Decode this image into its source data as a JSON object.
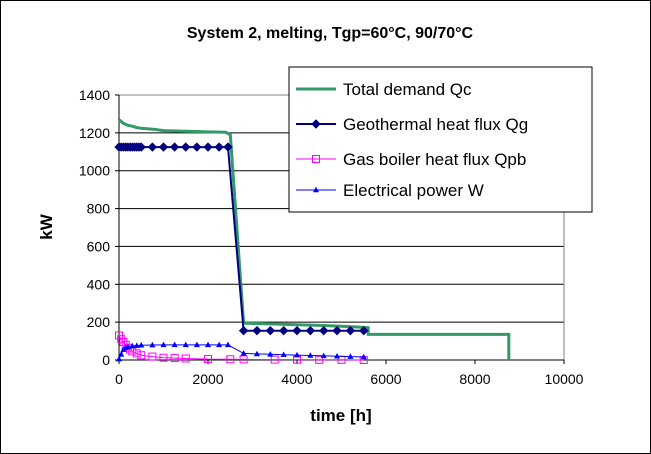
{
  "chart_data": {
    "type": "line",
    "title": "System 2, melting, Tgp=60°C, 90/70°C",
    "xlabel": "time [h]",
    "ylabel": "kW",
    "xlim": [
      0,
      10000
    ],
    "ylim": [
      0,
      1400
    ],
    "xticks": [
      "0",
      "2000",
      "4000",
      "6000",
      "8000",
      "10000"
    ],
    "yticks": [
      "0",
      "200",
      "400",
      "600",
      "800",
      "1000",
      "1200",
      "1400"
    ],
    "grid": "horizontal",
    "legend_position": "top-right",
    "series": [
      {
        "name": "Total demand Qc",
        "color": "#339966",
        "marker": "none",
        "x": [
          0,
          100,
          200,
          300,
          400,
          500,
          800,
          1000,
          1500,
          2000,
          2400,
          2500,
          2800,
          3000,
          3500,
          4000,
          4500,
          5000,
          5500,
          5600,
          5600,
          8760,
          8760
        ],
        "y": [
          1270,
          1250,
          1240,
          1235,
          1228,
          1224,
          1218,
          1212,
          1208,
          1205,
          1203,
          1190,
          195,
          193,
          190,
          186,
          183,
          178,
          172,
          170,
          135,
          135,
          0
        ]
      },
      {
        "name": "Geothermal heat flux Qg",
        "color": "#000080",
        "marker": "diamond",
        "x": [
          0,
          50,
          100,
          150,
          200,
          250,
          300,
          350,
          400,
          450,
          500,
          750,
          1000,
          1250,
          1500,
          1750,
          2000,
          2250,
          2450,
          2800,
          3100,
          3400,
          3700,
          4000,
          4300,
          4600,
          4900,
          5200,
          5500
        ],
        "y": [
          1125,
          1125,
          1125,
          1125,
          1125,
          1125,
          1125,
          1125,
          1125,
          1125,
          1125,
          1125,
          1125,
          1125,
          1125,
          1125,
          1125,
          1125,
          1125,
          155,
          155,
          155,
          155,
          155,
          155,
          155,
          155,
          155,
          155
        ]
      },
      {
        "name": "Gas boiler heat flux Qpb",
        "color": "#FF00FF",
        "marker": "square",
        "x": [
          0,
          50,
          100,
          150,
          200,
          250,
          300,
          400,
          500,
          750,
          1000,
          1250,
          1500,
          2000,
          2500,
          2800,
          3500,
          4000,
          4500,
          5000,
          5500
        ],
        "y": [
          130,
          110,
          95,
          80,
          65,
          55,
          45,
          35,
          25,
          18,
          12,
          10,
          8,
          5,
          4,
          3,
          2,
          2,
          1,
          1,
          0
        ]
      },
      {
        "name": "Electrical power W",
        "color": "#0000FF",
        "marker": "triangle",
        "x": [
          0,
          50,
          100,
          150,
          200,
          300,
          400,
          500,
          750,
          1000,
          1250,
          1500,
          1750,
          2000,
          2250,
          2450,
          2800,
          3100,
          3400,
          3700,
          4000,
          4300,
          4600,
          4900,
          5200,
          5500
        ],
        "y": [
          5,
          30,
          55,
          65,
          70,
          74,
          76,
          78,
          79,
          80,
          80,
          80,
          80,
          80,
          80,
          80,
          35,
          32,
          30,
          28,
          26,
          24,
          22,
          20,
          18,
          16
        ]
      }
    ]
  }
}
